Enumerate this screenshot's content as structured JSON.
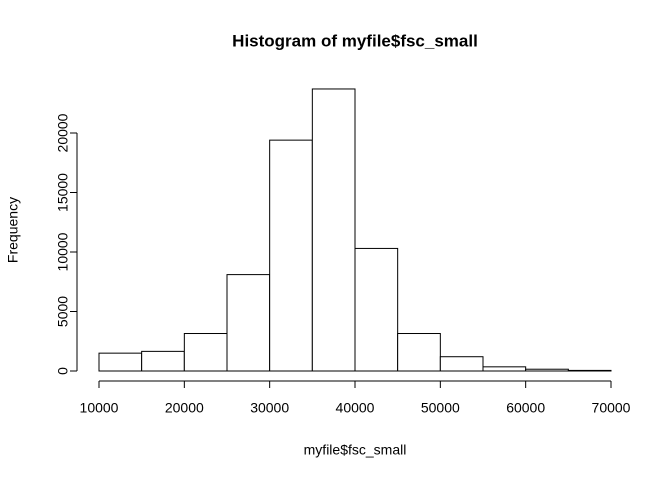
{
  "chart_data": {
    "type": "histogram",
    "title": "Histogram of myfile$fsc_small",
    "x_label": "myfile$fsc_small",
    "y_label": "Frequency",
    "bins": [
      10000,
      15000,
      20000,
      25000,
      30000,
      35000,
      40000,
      45000,
      50000,
      55000,
      60000,
      65000,
      70000
    ],
    "values": [
      1500,
      1650,
      3150,
      8100,
      19400,
      23700,
      10300,
      3150,
      1200,
      350,
      150,
      50
    ],
    "color": "#ffffff",
    "edge_color": "#000000",
    "xlim": [
      10000,
      70000
    ],
    "xticks": [
      10000,
      20000,
      30000,
      40000,
      50000,
      60000,
      70000
    ],
    "ylim": [
      0,
      25000
    ],
    "yticks": [
      0,
      5000,
      10000,
      15000,
      20000
    ]
  }
}
